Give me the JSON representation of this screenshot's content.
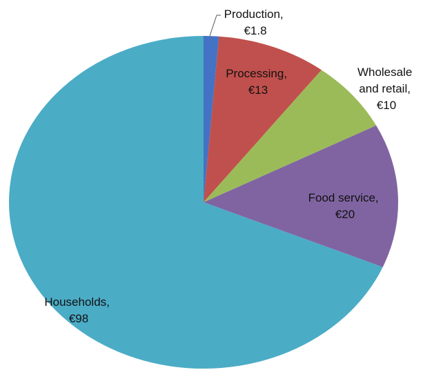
{
  "chart_data": {
    "type": "pie",
    "title": "",
    "slices": [
      {
        "name": "Production",
        "value": 1.8,
        "label_line1": "Production,",
        "label_line2": "€1.8",
        "color": "#4472C4"
      },
      {
        "name": "Processing",
        "value": 13,
        "label_line1": "Processing,",
        "label_line2": "€13",
        "color": "#C0504D"
      },
      {
        "name": "Wholesale and retail",
        "value": 10,
        "label_line1": "Wholesale",
        "label_line2": "and retail,",
        "label_line3": "€10",
        "color": "#9BBB59"
      },
      {
        "name": "Food service",
        "value": 20,
        "label_line1": "Food service,",
        "label_line2": "€20",
        "color": "#8064A2"
      },
      {
        "name": "Households",
        "value": 98,
        "label_line1": "Households,",
        "label_line2": "€98",
        "color": "#4BACC6"
      }
    ],
    "start_angle_deg": 0,
    "direction": "clockwise",
    "legend": "none"
  }
}
